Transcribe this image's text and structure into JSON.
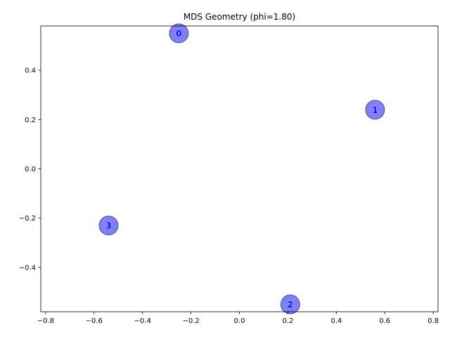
{
  "chart_data": {
    "type": "scatter",
    "title": "MDS Geometry (phi=1.80)",
    "xlabel": "",
    "ylabel": "",
    "xlim": [
      -0.82,
      0.82
    ],
    "ylim": [
      -0.58,
      0.58
    ],
    "xticks": [
      -0.8,
      -0.6,
      -0.4,
      -0.2,
      0.0,
      0.2,
      0.4,
      0.6,
      0.8
    ],
    "xtick_labels": [
      "−0.8",
      "−0.6",
      "−0.4",
      "−0.2",
      "0.0",
      "0.2",
      "0.4",
      "0.6",
      "0.8"
    ],
    "yticks": [
      -0.4,
      -0.2,
      0.0,
      0.2,
      0.4
    ],
    "ytick_labels": [
      "−0.4",
      "−0.2",
      "0.0",
      "0.2",
      "0.4"
    ],
    "grid": false,
    "points": [
      {
        "label": "0",
        "x": -0.25,
        "y": 0.55
      },
      {
        "label": "1",
        "x": 0.56,
        "y": 0.24
      },
      {
        "label": "2",
        "x": 0.21,
        "y": -0.55
      },
      {
        "label": "3",
        "x": -0.54,
        "y": -0.23
      }
    ],
    "marker_color": "#0000ff",
    "marker_alpha": 0.5,
    "edge_color": "#000000",
    "label_color": "#0000ff"
  }
}
